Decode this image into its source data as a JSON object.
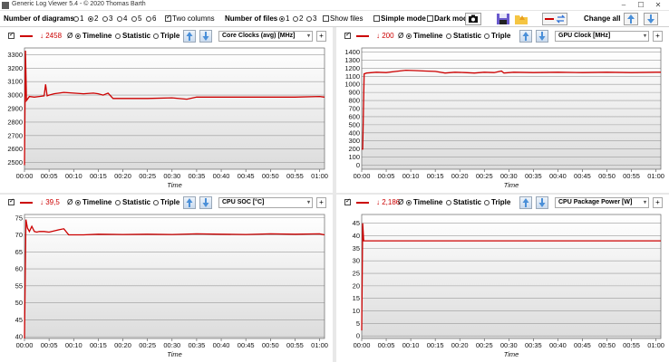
{
  "window": {
    "title": "Generic Log Viewer 5.4 - © 2020 Thomas Barth",
    "minimize": "–",
    "maximize": "☐",
    "close": "✕"
  },
  "toolbar": {
    "num_diagrams_label": "Number of diagrams",
    "diagram_options": [
      "1",
      "2",
      "3",
      "4",
      "5",
      "6"
    ],
    "diagram_selected": "2",
    "two_columns_label": "Two columns",
    "two_columns_checked": true,
    "num_files_label": "Number of files",
    "file_options": [
      "1",
      "2",
      "3"
    ],
    "file_selected": "1",
    "show_files_label": "Show files",
    "simple_mode_label": "Simple mode",
    "dark_mode_label": "Dark mod",
    "change_all_label": "Change all"
  },
  "panels": [
    {
      "min_value": "↓ 2458",
      "avg_symbol": "Ø",
      "timeline_label": "Timeline",
      "statistic_label": "Statistic",
      "triple_label": "Triple",
      "mode": "Timeline",
      "sensor": "Core Clocks (avg) [MHz]",
      "plus": "+",
      "xlabel": "Time"
    },
    {
      "min_value": "↓ 200",
      "avg_symbol": "Ø",
      "timeline_label": "Timeline",
      "statistic_label": "Statistic",
      "triple_label": "Triple",
      "mode": "Timeline",
      "sensor": "GPU Clock [MHz]",
      "plus": "+",
      "xlabel": "Time"
    },
    {
      "min_value": "↓ 39,5",
      "avg_symbol": "Ø",
      "timeline_label": "Timeline",
      "statistic_label": "Statistic",
      "triple_label": "Triple",
      "mode": "Timeline",
      "sensor": "CPU SOC [°C]",
      "plus": "+",
      "xlabel": "Time"
    },
    {
      "min_value": "↓ 2,186",
      "avg_symbol": "Ø",
      "timeline_label": "Timeline",
      "statistic_label": "Statistic",
      "triple_label": "Triple",
      "mode": "Timeline",
      "sensor": "CPU Package Power [W]",
      "plus": "+",
      "xlabel": "Time"
    }
  ],
  "chart_data": [
    {
      "type": "line",
      "x_ticks": [
        "00:00",
        "00:05",
        "00:10",
        "00:15",
        "00:20",
        "00:25",
        "00:30",
        "00:35",
        "00:40",
        "00:45",
        "00:50",
        "00:55",
        "01:00"
      ],
      "y_ticks": [
        2500,
        2600,
        2700,
        2800,
        2900,
        3000,
        3100,
        3200,
        3300
      ],
      "ylim": [
        2450,
        3350
      ],
      "xlim": [
        0,
        61
      ],
      "xlabel": "Time",
      "color": "#cc0000",
      "series": [
        {
          "x": [
            0,
            0.2,
            0.4,
            1,
            2,
            3,
            4,
            4.3,
            4.6,
            5,
            6,
            8,
            10,
            12,
            14,
            15,
            16,
            17,
            18,
            20,
            25,
            30,
            33,
            35,
            40,
            45,
            50,
            55,
            60,
            61
          ],
          "y": [
            2480,
            3330,
            2960,
            2990,
            2985,
            2990,
            2995,
            3080,
            2995,
            3000,
            3010,
            3020,
            3015,
            3010,
            3015,
            3010,
            3000,
            3015,
            2975,
            2975,
            2975,
            2980,
            2970,
            2985,
            2985,
            2985,
            2985,
            2985,
            2990,
            2985
          ]
        }
      ]
    },
    {
      "type": "line",
      "x_ticks": [
        "00:00",
        "00:05",
        "00:10",
        "00:15",
        "00:20",
        "00:25",
        "00:30",
        "00:35",
        "00:40",
        "00:45",
        "00:50",
        "00:55",
        "01:00"
      ],
      "y_ticks": [
        0,
        100,
        200,
        300,
        400,
        500,
        600,
        700,
        800,
        900,
        1000,
        1100,
        1200,
        1300,
        1400
      ],
      "ylim": [
        -50,
        1450
      ],
      "xlim": [
        0,
        61
      ],
      "xlabel": "Time",
      "color": "#cc0000",
      "series": [
        {
          "x": [
            0,
            0.2,
            0.5,
            1,
            3,
            5,
            7,
            9,
            11,
            13,
            15,
            17,
            19,
            21,
            23,
            25,
            27,
            28.5,
            29,
            31,
            35,
            40,
            45,
            50,
            55,
            60,
            61
          ],
          "y": [
            200,
            200,
            1130,
            1140,
            1150,
            1145,
            1160,
            1175,
            1170,
            1165,
            1160,
            1140,
            1150,
            1145,
            1140,
            1150,
            1145,
            1165,
            1140,
            1150,
            1145,
            1150,
            1145,
            1150,
            1145,
            1150,
            1150
          ]
        }
      ]
    },
    {
      "type": "line",
      "x_ticks": [
        "00:00",
        "00:05",
        "00:10",
        "00:15",
        "00:20",
        "00:25",
        "00:30",
        "00:35",
        "00:40",
        "00:45",
        "00:50",
        "00:55",
        "01:00"
      ],
      "y_ticks": [
        40,
        45,
        50,
        55,
        60,
        65,
        70,
        75
      ],
      "ylim": [
        39.5,
        76
      ],
      "xlim": [
        0,
        61
      ],
      "xlabel": "Time",
      "color": "#cc0000",
      "series": [
        {
          "x": [
            0,
            0.3,
            0.6,
            1,
            1.5,
            2,
            2.5,
            3,
            4,
            5,
            7,
            8,
            9,
            10,
            12,
            15,
            20,
            25,
            30,
            35,
            40,
            45,
            50,
            55,
            60,
            61
          ],
          "y": [
            39.5,
            74.5,
            72,
            71,
            72.5,
            71,
            70.8,
            71,
            71,
            70.8,
            71.5,
            71.8,
            70,
            70,
            70,
            70.2,
            70.1,
            70.2,
            70.1,
            70.3,
            70.2,
            70.1,
            70.3,
            70.2,
            70.3,
            70
          ]
        }
      ]
    },
    {
      "type": "line",
      "x_ticks": [
        "00:00",
        "00:05",
        "00:10",
        "00:15",
        "00:20",
        "00:25",
        "00:30",
        "00:35",
        "00:40",
        "00:45",
        "00:50",
        "00:55",
        "01:00"
      ],
      "y_ticks": [
        0,
        5,
        10,
        15,
        20,
        25,
        30,
        35,
        40,
        45
      ],
      "ylim": [
        -1,
        48.5
      ],
      "xlim": [
        0,
        61
      ],
      "xlabel": "Time",
      "color": "#cc0000",
      "series": [
        {
          "x": [
            0,
            0.2,
            0.4,
            1,
            61
          ],
          "y": [
            2.2,
            45,
            38,
            38,
            38
          ]
        }
      ]
    }
  ]
}
